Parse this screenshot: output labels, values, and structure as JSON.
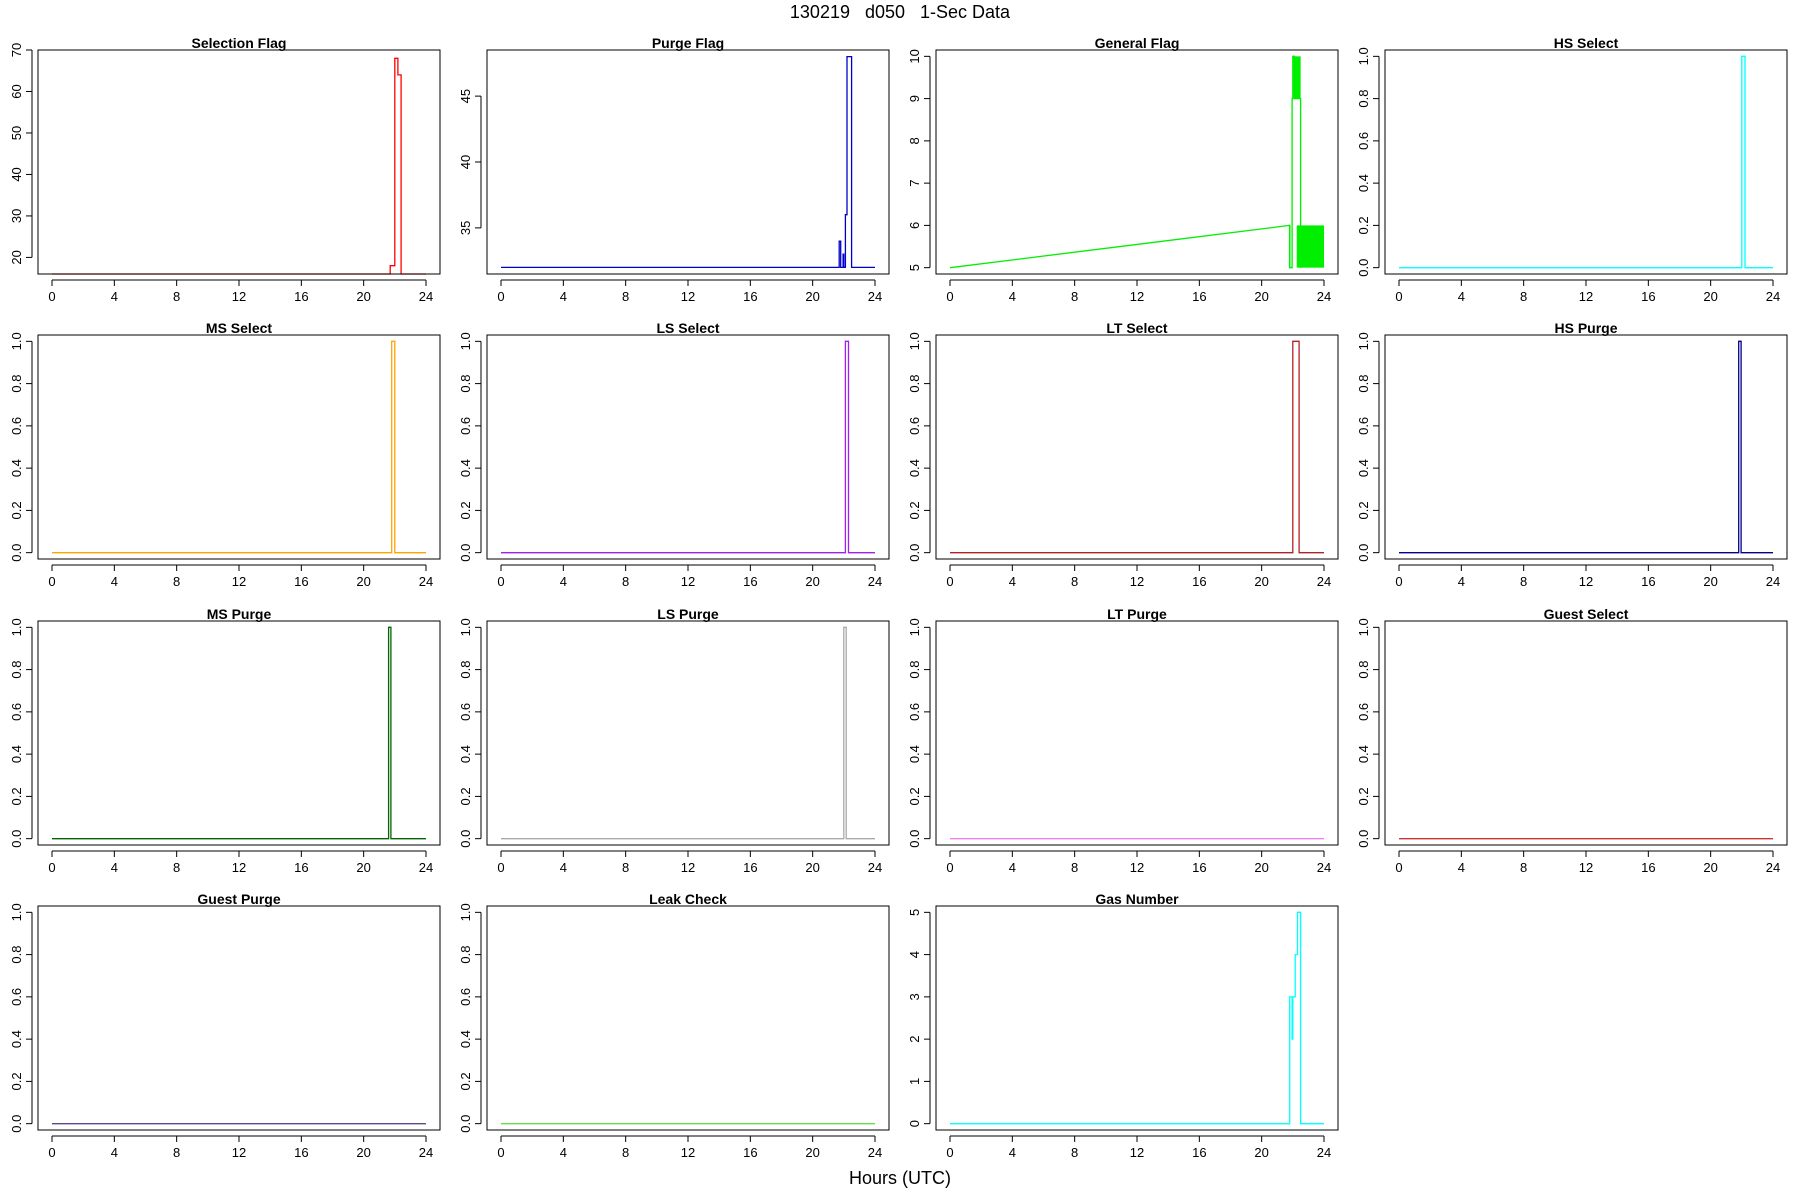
{
  "page": {
    "title": "130219   d050   1-Sec Data",
    "xlabel": "Hours (UTC)"
  },
  "chart_data": [
    {
      "type": "line",
      "title": "Selection Flag",
      "color": "#ff0000",
      "xlim": [
        0,
        24
      ],
      "ylim": [
        16,
        70
      ],
      "xticks": [
        0,
        4,
        8,
        12,
        16,
        20,
        24
      ],
      "yticks": [
        20,
        30,
        40,
        50,
        60,
        70
      ],
      "x": [
        0,
        21.7,
        21.7,
        22.0,
        22.0,
        22.2,
        22.2,
        22.4,
        22.4,
        24
      ],
      "y": [
        16,
        16,
        18,
        18,
        68,
        68,
        64,
        64,
        16,
        16
      ]
    },
    {
      "type": "line",
      "title": "Purge Flag",
      "color": "#0000cc",
      "xlim": [
        0,
        24
      ],
      "ylim": [
        31.5,
        48.5
      ],
      "xticks": [
        0,
        4,
        8,
        12,
        16,
        20,
        24
      ],
      "yticks": [
        35,
        40,
        45
      ],
      "x": [
        0,
        21.7,
        21.7,
        21.8,
        21.8,
        21.95,
        21.95,
        22.0,
        22.0,
        22.1,
        22.1,
        22.2,
        22.2,
        22.5,
        22.5,
        24
      ],
      "y": [
        32,
        32,
        34,
        34,
        32,
        32,
        33,
        33,
        32,
        32,
        36,
        36,
        48,
        48,
        32,
        32
      ]
    },
    {
      "type": "line",
      "title": "General Flag",
      "color": "#00ee00",
      "xlim": [
        0,
        24
      ],
      "ylim": [
        4.85,
        10.15
      ],
      "xticks": [
        0,
        4,
        8,
        12,
        16,
        20,
        24
      ],
      "yticks": [
        5,
        6,
        7,
        8,
        9,
        10
      ],
      "x": [
        0,
        21.8,
        21.8,
        21.8,
        21.95,
        21.95,
        22.0,
        22.0,
        22.1,
        22.1,
        22.5,
        22.5
      ],
      "y": [
        5,
        6,
        6,
        5,
        5,
        9,
        9,
        10,
        10,
        9,
        9,
        5
      ],
      "fills": [
        {
          "x0": 21.75,
          "x1": 21.85,
          "y0": 5,
          "y1": 6
        },
        {
          "x0": 22.0,
          "x1": 22.5,
          "y0": 9,
          "y1": 10
        },
        {
          "x0": 22.25,
          "x1": 24,
          "y0": 5,
          "y1": 6
        }
      ]
    },
    {
      "type": "line",
      "title": "HS Select",
      "color": "#00ffff",
      "xlim": [
        0,
        24
      ],
      "ylim": [
        -0.03,
        1.03
      ],
      "xticks": [
        0,
        4,
        8,
        12,
        16,
        20,
        24
      ],
      "yticks": [
        0.0,
        0.2,
        0.4,
        0.6,
        0.8,
        1.0
      ],
      "x": [
        0,
        22.0,
        22.0,
        22.2,
        22.2,
        24
      ],
      "y": [
        0,
        0,
        1,
        1,
        0,
        0
      ]
    },
    {
      "type": "line",
      "title": "MS Select",
      "color": "#ffa500",
      "xlim": [
        0,
        24
      ],
      "ylim": [
        -0.03,
        1.03
      ],
      "xticks": [
        0,
        4,
        8,
        12,
        16,
        20,
        24
      ],
      "yticks": [
        0.0,
        0.2,
        0.4,
        0.6,
        0.8,
        1.0
      ],
      "x": [
        0,
        21.8,
        21.8,
        22.0,
        22.0,
        24
      ],
      "y": [
        0,
        0,
        1,
        1,
        0,
        0
      ]
    },
    {
      "type": "line",
      "title": "LS Select",
      "color": "#a020f0",
      "xlim": [
        0,
        24
      ],
      "ylim": [
        -0.03,
        1.03
      ],
      "xticks": [
        0,
        4,
        8,
        12,
        16,
        20,
        24
      ],
      "yticks": [
        0.0,
        0.2,
        0.4,
        0.6,
        0.8,
        1.0
      ],
      "x": [
        0,
        22.1,
        22.1,
        22.3,
        22.3,
        24
      ],
      "y": [
        0,
        0,
        1,
        1,
        0,
        0
      ]
    },
    {
      "type": "line",
      "title": "LT Select",
      "color": "#b22222",
      "xlim": [
        0,
        24
      ],
      "ylim": [
        -0.03,
        1.03
      ],
      "xticks": [
        0,
        4,
        8,
        12,
        16,
        20,
        24
      ],
      "yticks": [
        0.0,
        0.2,
        0.4,
        0.6,
        0.8,
        1.0
      ],
      "x": [
        0,
        22.0,
        22.0,
        22.4,
        22.4,
        24
      ],
      "y": [
        0,
        0,
        1,
        1,
        0,
        0
      ]
    },
    {
      "type": "line",
      "title": "HS Purge",
      "color": "#00008b",
      "xlim": [
        0,
        24
      ],
      "ylim": [
        -0.03,
        1.03
      ],
      "xticks": [
        0,
        4,
        8,
        12,
        16,
        20,
        24
      ],
      "yticks": [
        0.0,
        0.2,
        0.4,
        0.6,
        0.8,
        1.0
      ],
      "x": [
        0,
        21.8,
        21.8,
        21.95,
        21.95,
        24
      ],
      "y": [
        0,
        0,
        1,
        1,
        0,
        0
      ]
    },
    {
      "type": "line",
      "title": "MS Purge",
      "color": "#006400",
      "xlim": [
        0,
        24
      ],
      "ylim": [
        -0.03,
        1.03
      ],
      "xticks": [
        0,
        4,
        8,
        12,
        16,
        20,
        24
      ],
      "yticks": [
        0.0,
        0.2,
        0.4,
        0.6,
        0.8,
        1.0
      ],
      "x": [
        0,
        21.6,
        21.6,
        21.75,
        21.75,
        24
      ],
      "y": [
        0,
        0,
        1,
        1,
        0,
        0
      ]
    },
    {
      "type": "line",
      "title": "LS Purge",
      "color": "#aaaaaa",
      "xlim": [
        0,
        24
      ],
      "ylim": [
        -0.03,
        1.03
      ],
      "xticks": [
        0,
        4,
        8,
        12,
        16,
        20,
        24
      ],
      "yticks": [
        0.0,
        0.2,
        0.4,
        0.6,
        0.8,
        1.0
      ],
      "x": [
        0,
        22.0,
        22.0,
        22.15,
        22.15,
        24
      ],
      "y": [
        0,
        0,
        1,
        1,
        0,
        0
      ]
    },
    {
      "type": "line",
      "title": "LT Purge",
      "color": "#ee82ee",
      "xlim": [
        0,
        24
      ],
      "ylim": [
        -0.03,
        1.03
      ],
      "xticks": [
        0,
        4,
        8,
        12,
        16,
        20,
        24
      ],
      "yticks": [
        0.0,
        0.2,
        0.4,
        0.6,
        0.8,
        1.0
      ],
      "x": [
        0,
        24
      ],
      "y": [
        0,
        0
      ]
    },
    {
      "type": "line",
      "title": "Guest Select",
      "color": "#cd3333",
      "xlim": [
        0,
        24
      ],
      "ylim": [
        -0.03,
        1.03
      ],
      "xticks": [
        0,
        4,
        8,
        12,
        16,
        20,
        24
      ],
      "yticks": [
        0.0,
        0.2,
        0.4,
        0.6,
        0.8,
        1.0
      ],
      "x": [
        0,
        24
      ],
      "y": [
        0,
        0
      ]
    },
    {
      "type": "line",
      "title": "Guest Purge",
      "color": "#5d478b",
      "xlim": [
        0,
        24
      ],
      "ylim": [
        -0.03,
        1.03
      ],
      "xticks": [
        0,
        4,
        8,
        12,
        16,
        20,
        24
      ],
      "yticks": [
        0.0,
        0.2,
        0.4,
        0.6,
        0.8,
        1.0
      ],
      "x": [
        0,
        24
      ],
      "y": [
        0,
        0
      ]
    },
    {
      "type": "line",
      "title": "Leak Check",
      "color": "#66dd44",
      "xlim": [
        0,
        24
      ],
      "ylim": [
        -0.03,
        1.03
      ],
      "xticks": [
        0,
        4,
        8,
        12,
        16,
        20,
        24
      ],
      "yticks": [
        0.0,
        0.2,
        0.4,
        0.6,
        0.8,
        1.0
      ],
      "x": [
        0,
        24
      ],
      "y": [
        0,
        0
      ]
    },
    {
      "type": "line",
      "title": "Gas Number",
      "color": "#00ffff",
      "xlim": [
        0,
        24
      ],
      "ylim": [
        -0.15,
        5.15
      ],
      "xticks": [
        0,
        4,
        8,
        12,
        16,
        20,
        24
      ],
      "yticks": [
        0,
        1,
        2,
        3,
        4,
        5
      ],
      "x": [
        0,
        21.8,
        21.8,
        21.95,
        21.95,
        22.0,
        22.0,
        22.15,
        22.15,
        22.3,
        22.3,
        22.5,
        22.5,
        24
      ],
      "y": [
        0,
        0,
        3,
        3,
        2,
        2,
        3,
        3,
        4,
        4,
        5,
        5,
        0,
        0
      ]
    }
  ]
}
